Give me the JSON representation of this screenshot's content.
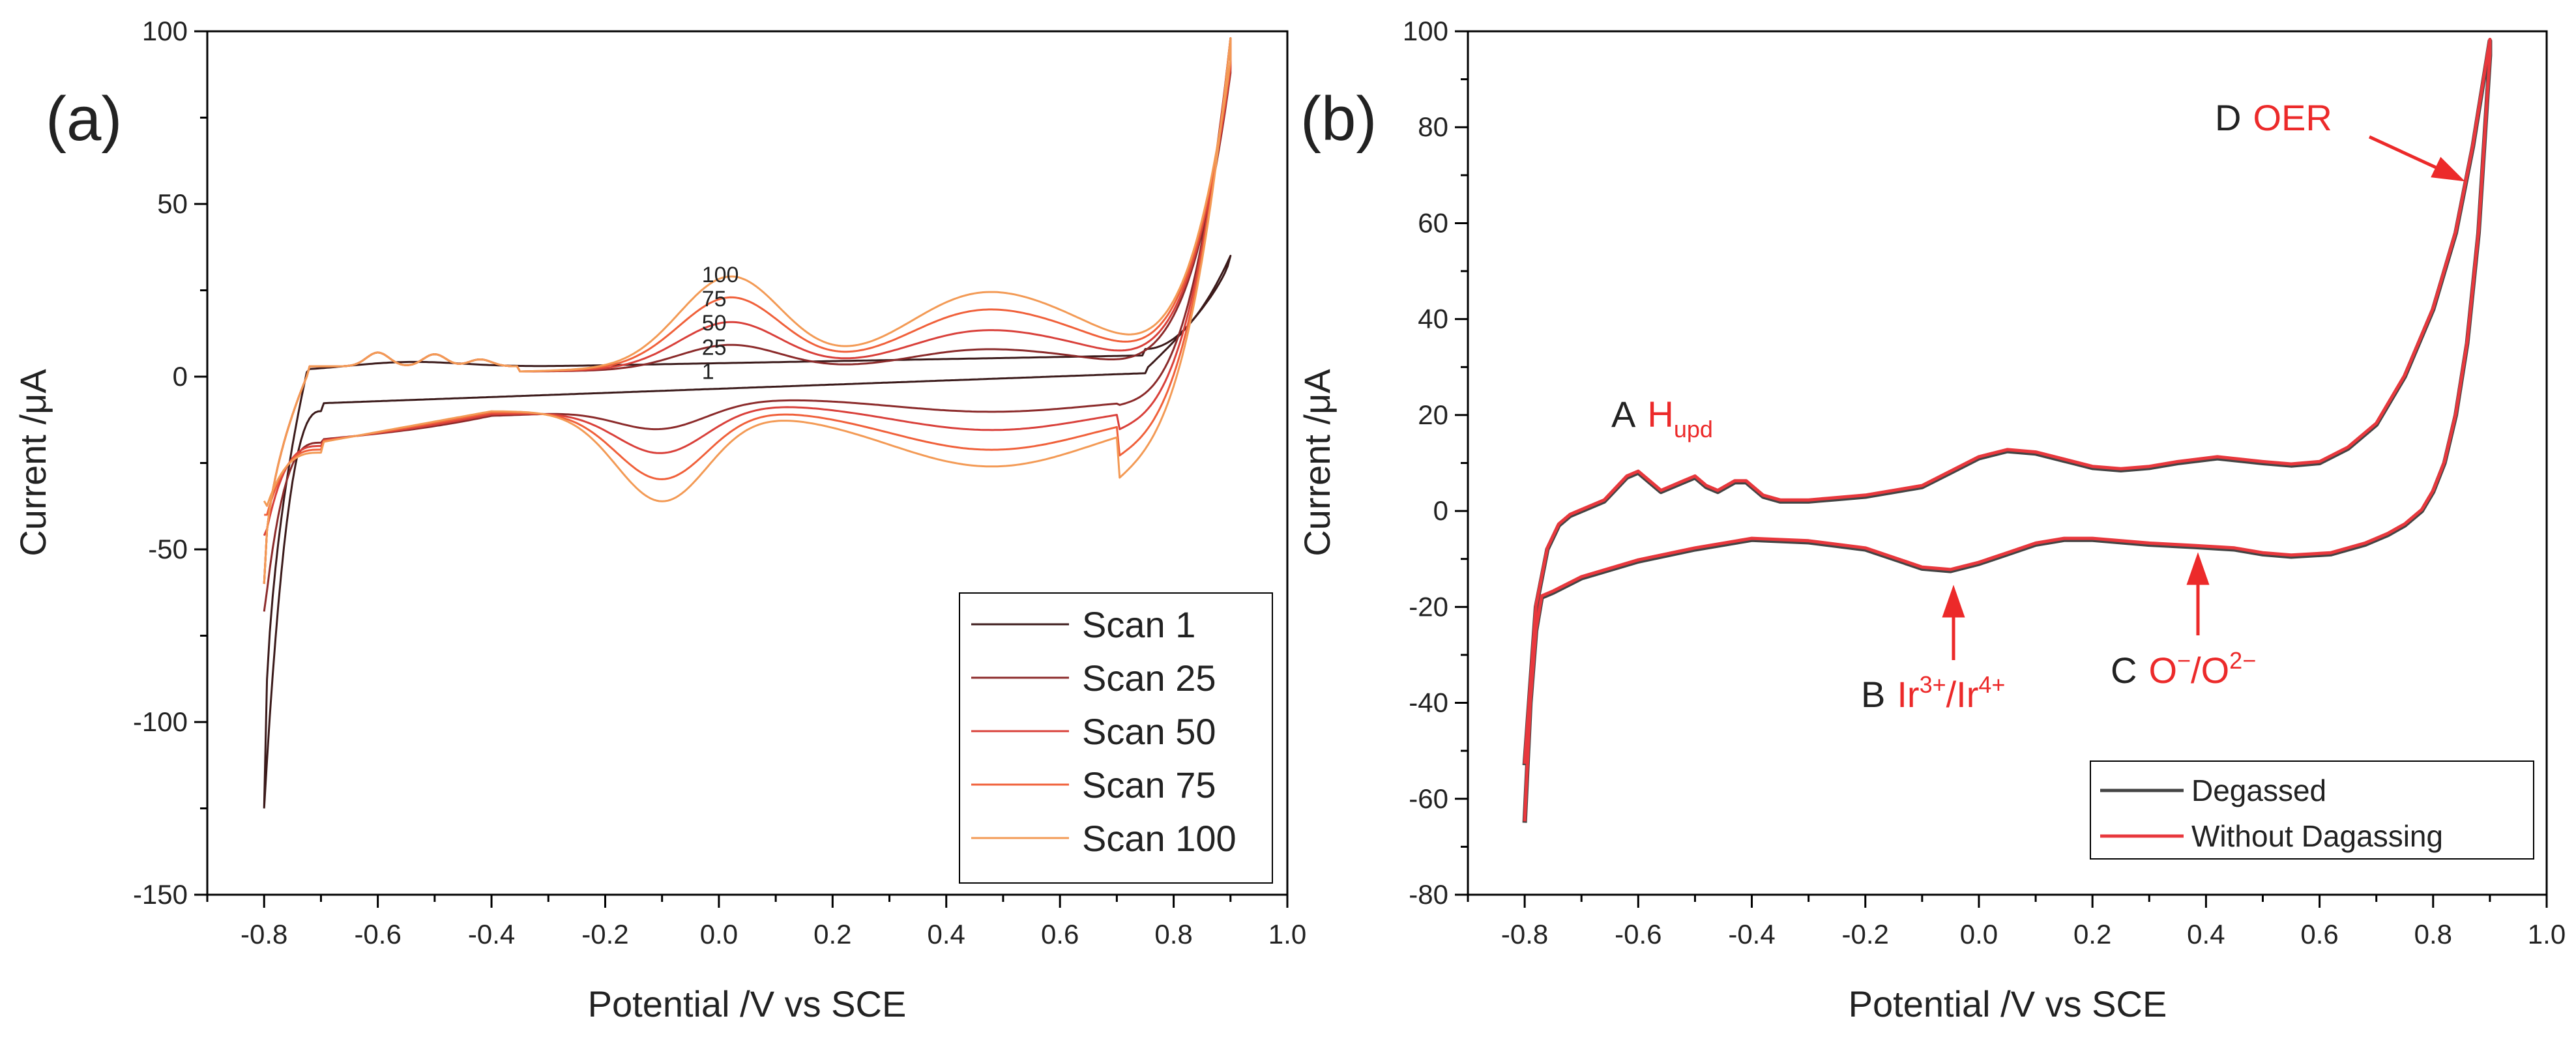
{
  "colors": {
    "scan1": "#3b1a1a",
    "scan25": "#8b2a2a",
    "scan50": "#d9403a",
    "scan75": "#f0603a",
    "scan100": "#f39a55",
    "degassed": "#444444",
    "without": "#e8383d",
    "annot": "#ec2a2a",
    "axis": "#000000"
  },
  "chart_data": [
    {
      "type": "line",
      "panel_label": "(a)",
      "xlabel": "Potential /V vs SCE",
      "ylabel": "Current /μA",
      "xlim": [
        -0.9,
        1.0
      ],
      "ylim": [
        -150,
        100
      ],
      "xticks": [
        "-0.8",
        "-0.6",
        "-0.4",
        "-0.2",
        "0.0",
        "0.2",
        "0.4",
        "0.6",
        "0.8",
        "1.0"
      ],
      "yticks": [
        "100",
        "50",
        "0",
        "-50",
        "-100",
        "-150"
      ],
      "legend": [
        "Scan 1",
        "Scan 25",
        "Scan 50",
        "Scan 75",
        "Scan 100"
      ],
      "legend_position": "bottom-right",
      "scan_labels": [
        "100",
        "75",
        "50",
        "25",
        "1"
      ],
      "series": [
        {
          "name": "Scan 1",
          "color_key": "scan1",
          "s": 0.0,
          "peak": 35,
          "min": -125,
          "upper_end": 28
        },
        {
          "name": "Scan 25",
          "color_key": "scan25",
          "s": 0.28,
          "peak": 99,
          "min": -68,
          "upper_end": 98
        },
        {
          "name": "Scan 50",
          "color_key": "scan50",
          "s": 0.52,
          "peak": 99,
          "min": -46,
          "upper_end": 98
        },
        {
          "name": "Scan 75",
          "color_key": "scan75",
          "s": 0.78,
          "peak": 99,
          "min": -40,
          "upper_end": 98
        },
        {
          "name": "Scan 100",
          "color_key": "scan100",
          "s": 1.0,
          "peak": 99,
          "min": -36,
          "upper_end": 98
        }
      ]
    },
    {
      "type": "line",
      "panel_label": "(b)",
      "xlabel": "Potential /V vs SCE",
      "ylabel": "Current /μA",
      "xlim": [
        -0.9,
        1.0
      ],
      "ylim": [
        -80,
        100
      ],
      "xticks": [
        "-0.8",
        "-0.6",
        "-0.4",
        "-0.2",
        "0.0",
        "0.2",
        "0.4",
        "0.6",
        "0.8",
        "1.0"
      ],
      "yticks": [
        "100",
        "80",
        "60",
        "40",
        "20",
        "0",
        "-20",
        "-40",
        "-60",
        "-80"
      ],
      "legend": [
        "Degassed",
        "Without Dagassing"
      ],
      "legend_position": "bottom-right",
      "anodic": [
        [
          -0.8,
          -53
        ],
        [
          -0.78,
          -20
        ],
        [
          -0.76,
          -8
        ],
        [
          -0.74,
          -3
        ],
        [
          -0.72,
          -1
        ],
        [
          -0.7,
          0
        ],
        [
          -0.66,
          2
        ],
        [
          -0.62,
          7
        ],
        [
          -0.6,
          8
        ],
        [
          -0.58,
          6
        ],
        [
          -0.56,
          4
        ],
        [
          -0.52,
          6
        ],
        [
          -0.5,
          7
        ],
        [
          -0.48,
          5
        ],
        [
          -0.46,
          4
        ],
        [
          -0.43,
          6
        ],
        [
          -0.41,
          6
        ],
        [
          -0.38,
          3
        ],
        [
          -0.35,
          2
        ],
        [
          -0.3,
          2
        ],
        [
          -0.25,
          2.5
        ],
        [
          -0.2,
          3
        ],
        [
          -0.1,
          5
        ],
        [
          -0.05,
          8
        ],
        [
          0.0,
          11
        ],
        [
          0.05,
          12.5
        ],
        [
          0.1,
          12
        ],
        [
          0.15,
          10.5
        ],
        [
          0.2,
          9
        ],
        [
          0.25,
          8.5
        ],
        [
          0.3,
          9
        ],
        [
          0.35,
          10
        ],
        [
          0.42,
          11
        ],
        [
          0.5,
          10
        ],
        [
          0.55,
          9.5
        ],
        [
          0.6,
          10
        ],
        [
          0.65,
          13
        ],
        [
          0.7,
          18
        ],
        [
          0.75,
          28
        ],
        [
          0.8,
          42
        ],
        [
          0.84,
          58
        ],
        [
          0.87,
          76
        ],
        [
          0.9,
          98
        ]
      ],
      "cathodic": [
        [
          0.9,
          95
        ],
        [
          0.88,
          58
        ],
        [
          0.86,
          35
        ],
        [
          0.84,
          20
        ],
        [
          0.82,
          10
        ],
        [
          0.8,
          4
        ],
        [
          0.78,
          0
        ],
        [
          0.75,
          -3
        ],
        [
          0.72,
          -5
        ],
        [
          0.68,
          -7
        ],
        [
          0.62,
          -9
        ],
        [
          0.55,
          -9.5
        ],
        [
          0.5,
          -9
        ],
        [
          0.45,
          -8
        ],
        [
          0.38,
          -7.5
        ],
        [
          0.3,
          -7
        ],
        [
          0.2,
          -6
        ],
        [
          0.15,
          -6
        ],
        [
          0.1,
          -7
        ],
        [
          0.05,
          -9
        ],
        [
          0.0,
          -11
        ],
        [
          -0.05,
          -12.5
        ],
        [
          -0.1,
          -12
        ],
        [
          -0.15,
          -10
        ],
        [
          -0.2,
          -8
        ],
        [
          -0.3,
          -6.5
        ],
        [
          -0.4,
          -6
        ],
        [
          -0.5,
          -8
        ],
        [
          -0.6,
          -10.5
        ],
        [
          -0.7,
          -14
        ],
        [
          -0.75,
          -17
        ],
        [
          -0.77,
          -18
        ],
        [
          -0.78,
          -25
        ],
        [
          -0.79,
          -40
        ],
        [
          -0.8,
          -65
        ]
      ],
      "annotations": {
        "A": {
          "letter": "A",
          "text": "H",
          "sub": "upd"
        },
        "B": {
          "letter": "B",
          "text1": "Ir",
          "sup1": "3+",
          "text2": "/Ir",
          "sup2": "4+"
        },
        "C": {
          "letter": "C",
          "text1": "O",
          "sup1": "−",
          "text2": "/O",
          "sup2": "2−"
        },
        "D": {
          "letter": "D",
          "text": "OER"
        }
      }
    }
  ]
}
